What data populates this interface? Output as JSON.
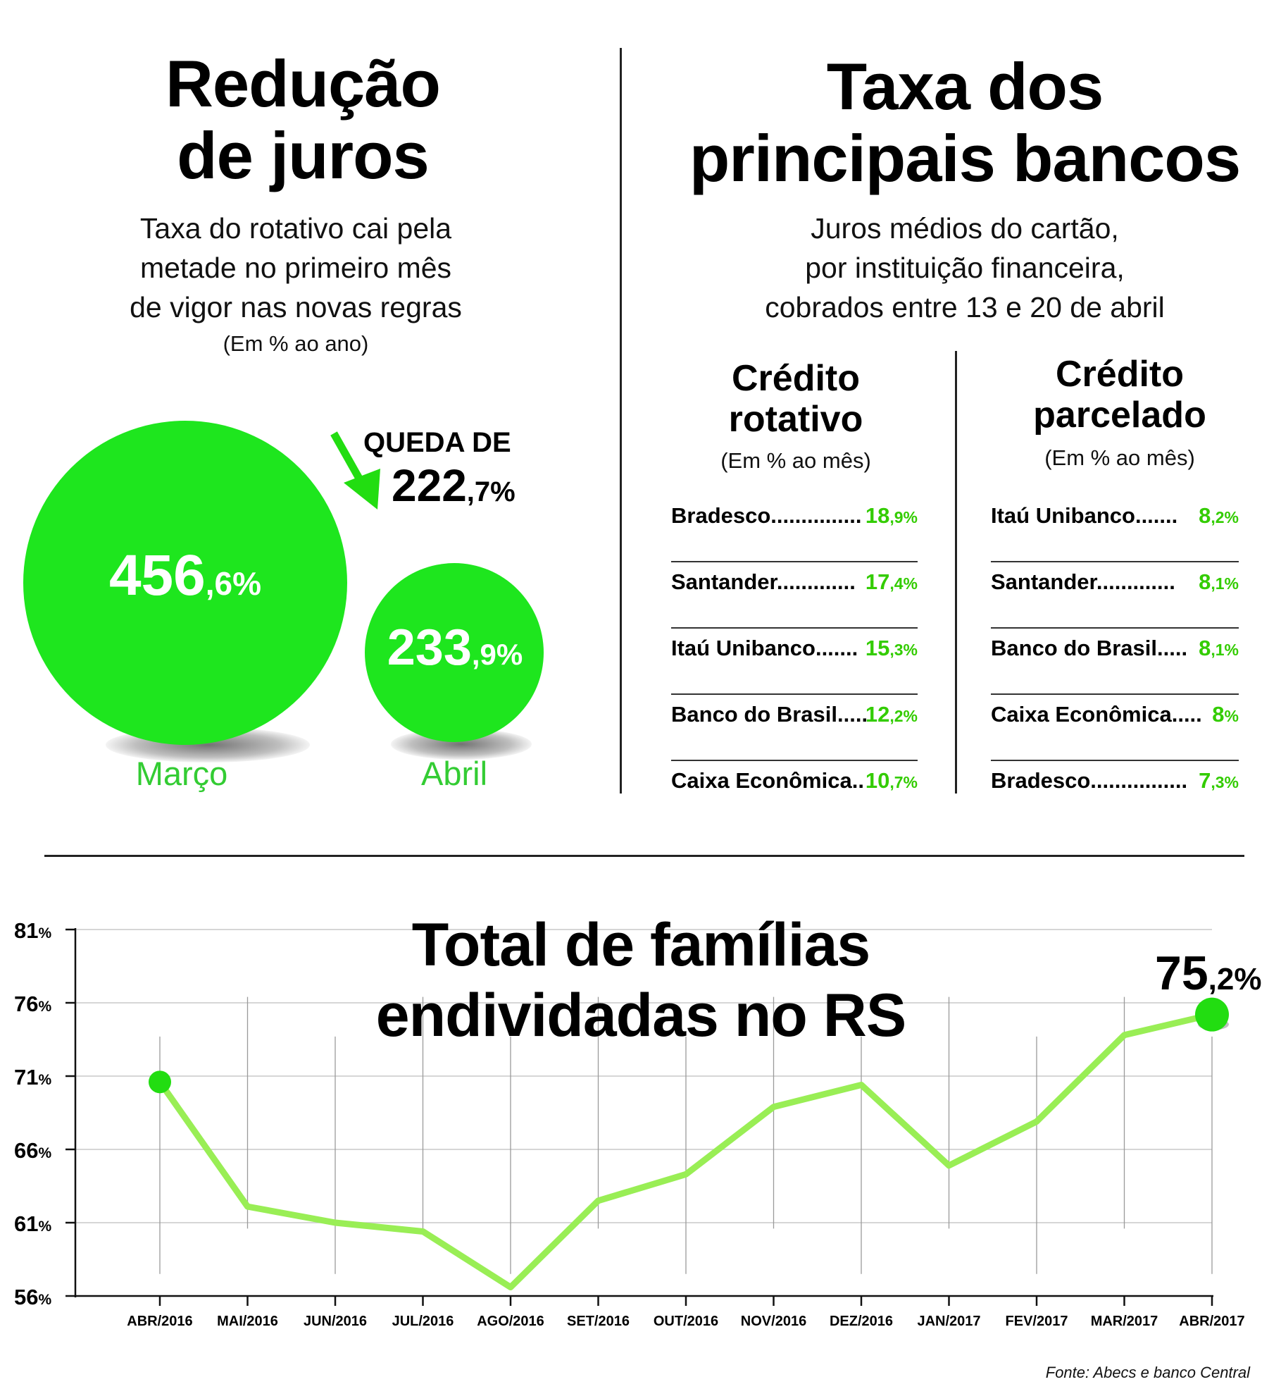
{
  "left_panel": {
    "title_line1": "Redução",
    "title_line2": "de juros",
    "subtitle_line1": "Taxa do rotativo cai pela",
    "subtitle_line2": "metade no primeiro mês",
    "subtitle_line3": "de vigor nas novas regras",
    "unit": "(Em % ao ano)",
    "march": {
      "label": "Março",
      "int": "456",
      "dec": ",6%",
      "value": 456.6
    },
    "april": {
      "label": "Abril",
      "int": "233",
      "dec": ",9%",
      "value": 233.9
    },
    "drop": {
      "label": "QUEDA DE",
      "int": "222",
      "dec": ",7%"
    }
  },
  "right_panel": {
    "title_line1": "Taxa dos",
    "title_line2": "principais bancos",
    "subtitle_line1": "Juros médios do cartão,",
    "subtitle_line2": "por instituição financeira,",
    "subtitle_line3": "cobrados entre 13 e 20 de abril",
    "rotativo": {
      "head_line1": "Crédito",
      "head_line2": "rotativo",
      "unit": "(Em % ao mês)",
      "rows": [
        {
          "label": "Bradesco...............",
          "int": "18",
          "dec": ",9%"
        },
        {
          "label": "Santander.............",
          "int": "17",
          "dec": ",4%"
        },
        {
          "label": "Itaú Unibanco.......",
          "int": "15",
          "dec": ",3%"
        },
        {
          "label": "Banco do Brasil.....",
          "int": "12",
          "dec": ",2%"
        },
        {
          "label": "Caixa Econômica..",
          "int": "10",
          "dec": ",7%"
        }
      ]
    },
    "parcelado": {
      "head_line1": "Crédito",
      "head_line2": "parcelado",
      "unit": "(Em % ao mês)",
      "rows": [
        {
          "label": "Itaú Unibanco.......",
          "int": "8",
          "dec": ",2%"
        },
        {
          "label": "Santander.............",
          "int": "8",
          "dec": ",1%"
        },
        {
          "label": "Banco do Brasil.....",
          "int": "8",
          "dec": ",1%"
        },
        {
          "label": "Caixa Econômica.....",
          "int": "8",
          "dec": "%"
        },
        {
          "label": "Bradesco................",
          "int": "7",
          "dec": ",3%"
        }
      ]
    }
  },
  "chart_data": {
    "type": "line",
    "title_line1": "Total de famílias",
    "title_line2": "endividadas no RS",
    "categories": [
      "ABR/2016",
      "MAI/2016",
      "JUN/2016",
      "JUL/2016",
      "AGO/2016",
      "SET/2016",
      "OUT/2016",
      "NOV/2016",
      "DEZ/2016",
      "JAN/2017",
      "FEV/2017",
      "MAR/2017",
      "ABR/2017"
    ],
    "values": [
      70.6,
      62.1,
      61.0,
      60.4,
      56.6,
      62.5,
      64.3,
      68.9,
      70.4,
      64.9,
      67.9,
      73.8,
      75.2
    ],
    "y_ticks": [
      {
        "value": 81,
        "num": "81",
        "pct": "%"
      },
      {
        "value": 76,
        "num": "76",
        "pct": "%"
      },
      {
        "value": 71,
        "num": "71",
        "pct": "%"
      },
      {
        "value": 66,
        "num": "66",
        "pct": "%"
      },
      {
        "value": 61,
        "num": "61",
        "pct": "%"
      },
      {
        "value": 56,
        "num": "56",
        "pct": "%"
      }
    ],
    "ylim": [
      56,
      81
    ],
    "highlight_int": "75",
    "highlight_dec": ",2%",
    "line_color": "#99ee55",
    "marker_color": "#22dd11",
    "source": "Fonte: Abecs e banco Central"
  }
}
